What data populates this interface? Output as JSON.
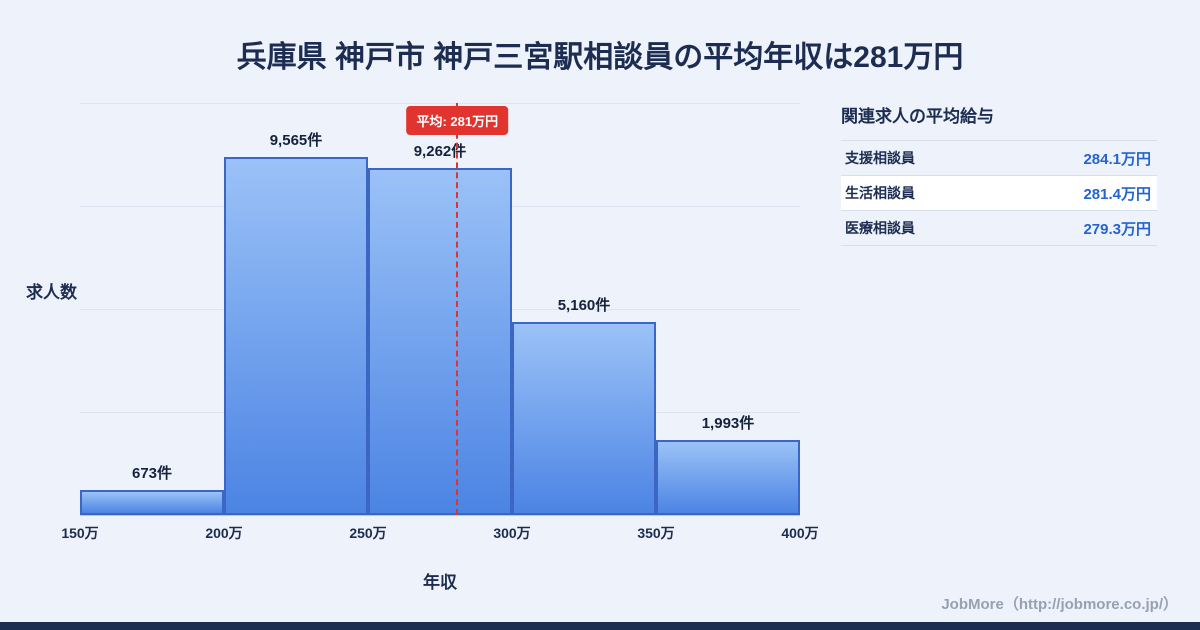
{
  "page": {
    "background_color": "#eef3fb",
    "accent_navy": "#1d2d52"
  },
  "chart_data": {
    "type": "bar",
    "title": "兵庫県 神戸市 神戸三宮駅相談員の平均年収は281万円",
    "xlabel": "年収",
    "ylabel": "求人数",
    "bin_edges": [
      150,
      200,
      250,
      300,
      350,
      400
    ],
    "bin_edge_labels": [
      "150万",
      "200万",
      "250万",
      "300万",
      "350万",
      "400万"
    ],
    "values": [
      673,
      9565,
      9262,
      5160,
      1993
    ],
    "value_labels": [
      "673件",
      "9,565件",
      "9,262件",
      "5,160件",
      "1,993件"
    ],
    "ylim": [
      0,
      11000
    ],
    "grid": true,
    "average": {
      "value": 281,
      "label": "平均: 281万円"
    },
    "bar_color_top": "#9bc2f7",
    "bar_color_bottom": "#4c84e4",
    "bar_border_color": "#3b66c4",
    "average_line_color": "#e2342f"
  },
  "sidebar": {
    "heading": "関連求人の平均給与",
    "value_color": "#2563cf",
    "rows": [
      {
        "label": "支援相談員",
        "value": "284.1万円"
      },
      {
        "label": "生活相談員",
        "value": "281.4万円"
      },
      {
        "label": "医療相談員",
        "value": "279.3万円"
      }
    ]
  },
  "footer": {
    "credit": "JobMore（http://jobmore.co.jp/）"
  }
}
